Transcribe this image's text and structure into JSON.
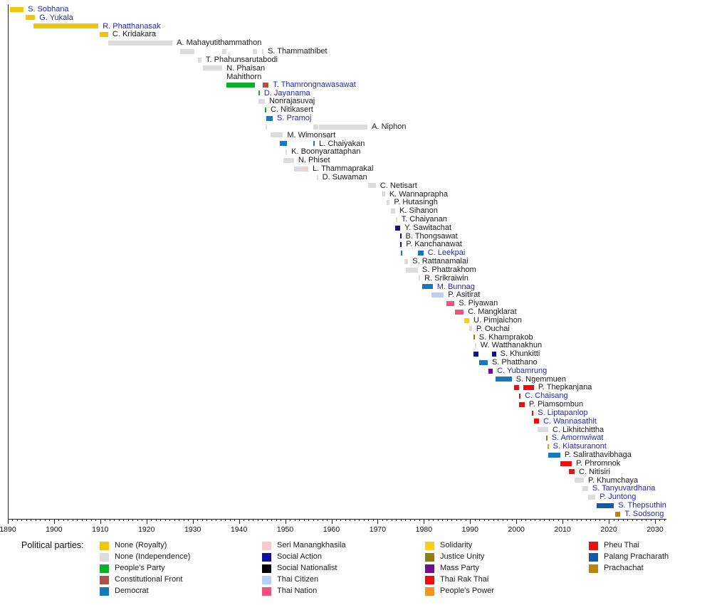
{
  "legend": {
    "title": "Political parties:",
    "columns": [
      [
        "royalty",
        "independence",
        "peoples_party",
        "constitutional_front",
        "democrat"
      ],
      [
        "seri_manangkhasila",
        "social_action",
        "social_nationalist",
        "thai_citizen",
        "thai_nation"
      ],
      [
        "solidarity",
        "justice_unity",
        "mass_party",
        "thai_rak_thai",
        "peoples_power"
      ],
      [
        "pheu_thai",
        "palang_pracharath",
        "prachachat"
      ]
    ]
  },
  "parties": {
    "royalty": {
      "label": "None (Royalty)",
      "color": "#F2C40D"
    },
    "independence": {
      "label": "None (Independence)",
      "color": "#DCDCDC"
    },
    "peoples_party": {
      "label": "People's Party",
      "color": "#0CAE2C"
    },
    "constitutional_front": {
      "label": "Constitutional Front",
      "color": "#A6544F"
    },
    "democrat": {
      "label": "Democrat",
      "color": "#1778BE"
    },
    "seri_manangkhasila": {
      "label": "Seri Manangkhasila",
      "color": "#F8C9CE"
    },
    "social_action": {
      "label": "Social Action",
      "color": "#10109B"
    },
    "social_nationalist": {
      "label": "Social Nationalist",
      "color": "#000000"
    },
    "thai_citizen": {
      "label": "Thai Citizen",
      "color": "#BACFF5"
    },
    "thai_nation": {
      "label": "Thai Nation",
      "color": "#F6507E"
    },
    "solidarity": {
      "label": "Solidarity",
      "color": "#FBCF13"
    },
    "justice_unity": {
      "label": "Justice Unity",
      "color": "#8E7D13"
    },
    "mass_party": {
      "label": "Mass Party",
      "color": "#710D8E"
    },
    "thai_rak_thai": {
      "label": "Thai Rak Thai",
      "color": "#F60909"
    },
    "peoples_power": {
      "label": "People's Power",
      "color": "#F8941C"
    },
    "pheu_thai": {
      "label": "Pheu Thai",
      "color": "#ED1111"
    },
    "palang_pracharath": {
      "label": "Palang Pracharath",
      "color": "#115CA9"
    },
    "prachachat": {
      "label": "Prachachat",
      "color": "#BC830E"
    }
  },
  "chart_data": {
    "type": "bar",
    "variant": "horizontal-timeline",
    "title": "",
    "xlabel": "",
    "ylabel": "",
    "x_axis": {
      "min": 1890,
      "max": 2033,
      "major_tick_interval": 10,
      "minor_tick_interval": 1,
      "tick_labels": [
        "1890",
        "1900",
        "1910",
        "1920",
        "1930",
        "1940",
        "1950",
        "1960",
        "1970",
        "1980",
        "1990",
        "2000",
        "2010",
        "2020",
        "2030"
      ]
    },
    "people": [
      {
        "name": "S. Sobhana",
        "link": true,
        "segments": [
          [
            1890.5,
            1893.4,
            "royalty"
          ]
        ]
      },
      {
        "name": "G. Yukala",
        "link": true,
        "segments": [
          [
            1893.9,
            1895.9,
            "royalty"
          ]
        ]
      },
      {
        "name": "R. Phatthanasak",
        "link": true,
        "segments": [
          [
            1895.6,
            1909.6,
            "royalty"
          ]
        ]
      },
      {
        "name": "C. Kridakara",
        "link": false,
        "segments": [
          [
            1909.9,
            1911.7,
            "royalty"
          ]
        ]
      },
      {
        "name": "A. Mahayutithammathon",
        "link": false,
        "segments": [
          [
            1911.7,
            1925.6,
            "independence"
          ]
        ]
      },
      {
        "name": "S. Thammathibet",
        "link": false,
        "segments": [
          [
            1927.3,
            1930.4,
            "independence"
          ],
          [
            1936.4,
            1937.3,
            "independence"
          ],
          [
            1943.0,
            1943.9,
            "independence"
          ],
          [
            1945.0,
            1945.3,
            "independence"
          ]
        ]
      },
      {
        "name": "T. Phahunsarutabodi",
        "link": false,
        "segments": [
          [
            1931.1,
            1931.9,
            "independence"
          ]
        ]
      },
      {
        "name": "N. Phaisan Mahithorn",
        "link": false,
        "lines": [
          "N. Phaisan",
          "Mahithorn"
        ],
        "segments": [
          [
            1932.2,
            1936.4,
            "independence"
          ]
        ]
      },
      {
        "name": "T. Thamrongnawasawat",
        "link": true,
        "segments": [
          [
            1937.3,
            1943.4,
            "peoples_party"
          ],
          [
            1945.1,
            1946.4,
            "constitutional_front"
          ]
        ]
      },
      {
        "name": "D. Jayanama",
        "link": true,
        "segments": [
          [
            1944.2,
            1944.5,
            "peoples_party"
          ]
        ]
      },
      {
        "name": "Nonrajasuvaj",
        "link": false,
        "segments": [
          [
            1944.2,
            1945.6,
            "independence"
          ]
        ]
      },
      {
        "name": "C. Nitikasert",
        "link": false,
        "segments": [
          [
            1945.6,
            1945.9,
            "peoples_party"
          ]
        ]
      },
      {
        "name": "S. Pramoj",
        "link": true,
        "segments": [
          [
            1945.9,
            1947.3,
            "democrat"
          ]
        ]
      },
      {
        "name": "A. Niphon",
        "link": false,
        "segments": [
          [
            1945.7,
            1946.0,
            "independence"
          ],
          [
            1956.1,
            1957.1,
            "independence"
          ],
          [
            1957.3,
            1967.8,
            "independence"
          ]
        ]
      },
      {
        "name": "M. Wimonsart",
        "link": false,
        "segments": [
          [
            1946.8,
            1949.5,
            "independence"
          ]
        ]
      },
      {
        "name": "L. Chaiyakan",
        "link": false,
        "segments": [
          [
            1948.8,
            1950.4,
            "democrat"
          ],
          [
            1956.1,
            1956.4,
            "democrat"
          ]
        ]
      },
      {
        "name": "K. Boonyarattaphan",
        "link": false,
        "segments": [
          [
            1950.1,
            1950.4,
            "independence"
          ]
        ]
      },
      {
        "name": "N. Phiset",
        "link": false,
        "segments": [
          [
            1949.6,
            1951.9,
            "independence"
          ]
        ]
      },
      {
        "name": "L. Thammaprakal",
        "link": false,
        "segments": [
          [
            1951.9,
            1954.1,
            "independence"
          ],
          [
            1954.1,
            1955.0,
            "seri_manangkhasila"
          ]
        ]
      },
      {
        "name": "D. Suwaman",
        "link": false,
        "segments": [
          [
            1956.8,
            1957.1,
            "independence"
          ]
        ]
      },
      {
        "name": "C. Netisart",
        "link": false,
        "segments": [
          [
            1967.9,
            1969.6,
            "independence"
          ]
        ]
      },
      {
        "name": "K. Wannaprapha",
        "link": false,
        "segments": [
          [
            1971.0,
            1971.6,
            "independence"
          ]
        ]
      },
      {
        "name": "P. Hutasingh",
        "link": false,
        "segments": [
          [
            1971.9,
            1972.6,
            "independence"
          ]
        ]
      },
      {
        "name": "K. Sihanon",
        "link": false,
        "segments": [
          [
            1972.9,
            1973.8,
            "independence"
          ]
        ]
      },
      {
        "name": "T. Chaiyanan",
        "link": false,
        "segments": [
          [
            1973.9,
            1974.2,
            "independence"
          ]
        ]
      },
      {
        "name": "Y. Sawitachat",
        "link": false,
        "segments": [
          [
            1973.8,
            1974.9,
            "social_action"
          ]
        ]
      },
      {
        "name": "B. Thongsawat",
        "link": false,
        "segments": [
          [
            1974.8,
            1975.1,
            "social_action"
          ]
        ]
      },
      {
        "name": "P. Kanchanawat",
        "link": false,
        "segments": [
          [
            1974.9,
            1975.2,
            "social_action"
          ]
        ]
      },
      {
        "name": "C. Leekpai",
        "link": true,
        "segments": [
          [
            1975.0,
            1975.3,
            "democrat"
          ],
          [
            1978.7,
            1979.9,
            "democrat"
          ]
        ]
      },
      {
        "name": "S. Rattanamalai",
        "link": false,
        "segments": [
          [
            1975.8,
            1976.6,
            "independence"
          ]
        ]
      },
      {
        "name": "S. Phattrakhom",
        "link": false,
        "segments": [
          [
            1976.1,
            1978.7,
            "independence"
          ]
        ]
      },
      {
        "name": "R. Srikraiwin",
        "link": false,
        "segments": [
          [
            1978.9,
            1979.2,
            "independence"
          ]
        ]
      },
      {
        "name": "M. Bunnag",
        "link": true,
        "segments": [
          [
            1979.6,
            1981.9,
            "democrat"
          ]
        ]
      },
      {
        "name": "P. Asitirat",
        "link": false,
        "segments": [
          [
            1981.6,
            1984.3,
            "thai_citizen"
          ]
        ]
      },
      {
        "name": "S. Piyawan",
        "link": false,
        "segments": [
          [
            1984.9,
            1986.6,
            "thai_nation"
          ]
        ]
      },
      {
        "name": "C. Mangklarat",
        "link": false,
        "segments": [
          [
            1986.7,
            1988.6,
            "thai_nation"
          ]
        ]
      },
      {
        "name": "U. Pimjaichon",
        "link": false,
        "segments": [
          [
            1988.7,
            1989.8,
            "solidarity"
          ]
        ]
      },
      {
        "name": "P. Ouchai",
        "link": false,
        "segments": [
          [
            1989.8,
            1990.4,
            "independence"
          ]
        ]
      },
      {
        "name": "S. Khamprakob",
        "link": false,
        "segments": [
          [
            1990.7,
            1991.0,
            "justice_unity"
          ]
        ]
      },
      {
        "name": "W. Watthanakhun",
        "link": false,
        "segments": [
          [
            1991.0,
            1991.3,
            "independence"
          ]
        ]
      },
      {
        "name": "S. Khunkitti",
        "link": false,
        "segments": [
          [
            1990.7,
            1991.8,
            "social_action"
          ],
          [
            1994.7,
            1995.6,
            "social_action"
          ]
        ]
      },
      {
        "name": "S. Phatthano",
        "link": false,
        "segments": [
          [
            1992.0,
            1993.8,
            "democrat"
          ]
        ]
      },
      {
        "name": "C. Yubamrung",
        "link": true,
        "segments": [
          [
            1994.0,
            1994.9,
            "mass_party"
          ]
        ]
      },
      {
        "name": "S. Ngemmuen",
        "link": false,
        "segments": [
          [
            1995.5,
            1999.0,
            "democrat"
          ]
        ]
      },
      {
        "name": "P. Thepkanjana",
        "link": false,
        "segments": [
          [
            1999.5,
            2000.6,
            "thai_rak_thai"
          ],
          [
            2001.5,
            2003.8,
            "thai_rak_thai"
          ]
        ]
      },
      {
        "name": "C. Chaisang",
        "link": true,
        "segments": [
          [
            2000.6,
            2000.9,
            "thai_rak_thai"
          ]
        ]
      },
      {
        "name": "P. Piamsombun",
        "link": false,
        "segments": [
          [
            2000.6,
            2001.8,
            "thai_rak_thai"
          ]
        ]
      },
      {
        "name": "S. Liptapanlop",
        "link": true,
        "segments": [
          [
            2003.4,
            2003.7,
            "thai_rak_thai"
          ]
        ]
      },
      {
        "name": "C. Wannasathit",
        "link": true,
        "segments": [
          [
            2003.8,
            2004.9,
            "thai_rak_thai"
          ]
        ]
      },
      {
        "name": "C. Likhitchittha",
        "link": false,
        "segments": [
          [
            2004.6,
            2006.9,
            "independence"
          ]
        ]
      },
      {
        "name": "S. Amornwiwat",
        "link": true,
        "segments": [
          [
            2006.4,
            2006.7,
            "justice_unity"
          ]
        ]
      },
      {
        "name": "S. Kiatsuranont",
        "link": true,
        "segments": [
          [
            2006.7,
            2007.0,
            "peoples_power"
          ]
        ]
      },
      {
        "name": "P. Salirathavibhaga",
        "link": false,
        "segments": [
          [
            2006.9,
            2009.5,
            "democrat"
          ]
        ]
      },
      {
        "name": "P. Phromnok",
        "link": false,
        "segments": [
          [
            2009.5,
            2012.0,
            "pheu_thai"
          ]
        ]
      },
      {
        "name": "C. Nitisiri",
        "link": false,
        "segments": [
          [
            2011.4,
            2012.6,
            "pheu_thai"
          ]
        ]
      },
      {
        "name": "P. Khumchaya",
        "link": false,
        "segments": [
          [
            2012.6,
            2014.6,
            "independence"
          ]
        ]
      },
      {
        "name": "S. Tanyuvardhana",
        "link": true,
        "segments": [
          [
            2014.3,
            2015.5,
            "independence"
          ]
        ]
      },
      {
        "name": "P. Juntong",
        "link": true,
        "segments": [
          [
            2015.5,
            2017.1,
            "independence"
          ]
        ]
      },
      {
        "name": "S. Thepsuthin",
        "link": true,
        "segments": [
          [
            2017.4,
            2021.1,
            "palang_pracharath"
          ]
        ]
      },
      {
        "name": "T. Sodsong",
        "link": true,
        "segments": [
          [
            2021.4,
            2022.5,
            "prachachat"
          ]
        ]
      }
    ]
  }
}
